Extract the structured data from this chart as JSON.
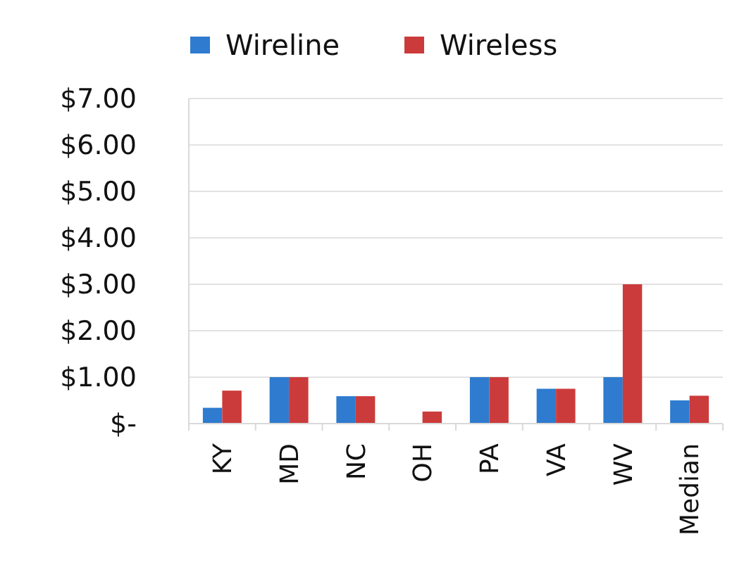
{
  "chart_data": {
    "type": "bar",
    "categories": [
      "KY",
      "MD",
      "NC",
      "OH",
      "PA",
      "VA",
      "WV",
      "Median"
    ],
    "series": [
      {
        "name": "Wireline",
        "color": "#2e7bcf",
        "values": [
          0.34,
          1,
          0.59,
          null,
          1,
          0.75,
          1,
          0.5
        ]
      },
      {
        "name": "Wireless",
        "color": "#cc3b3b",
        "values": [
          0.71,
          1,
          0.59,
          0.26,
          1,
          0.75,
          3,
          0.6
        ]
      }
    ],
    "ylim": [
      0,
      7
    ],
    "yticks": [
      {
        "value": 0,
        "label": "$-"
      },
      {
        "value": 1,
        "label": "$1.00"
      },
      {
        "value": 2,
        "label": "$2.00"
      },
      {
        "value": 3,
        "label": "$3.00"
      },
      {
        "value": 4,
        "label": "$4.00"
      },
      {
        "value": 5,
        "label": "$5.00"
      },
      {
        "value": 6,
        "label": "$6.00"
      },
      {
        "value": 7,
        "label": "$7.00"
      }
    ],
    "grid": "y",
    "legend": "top"
  }
}
